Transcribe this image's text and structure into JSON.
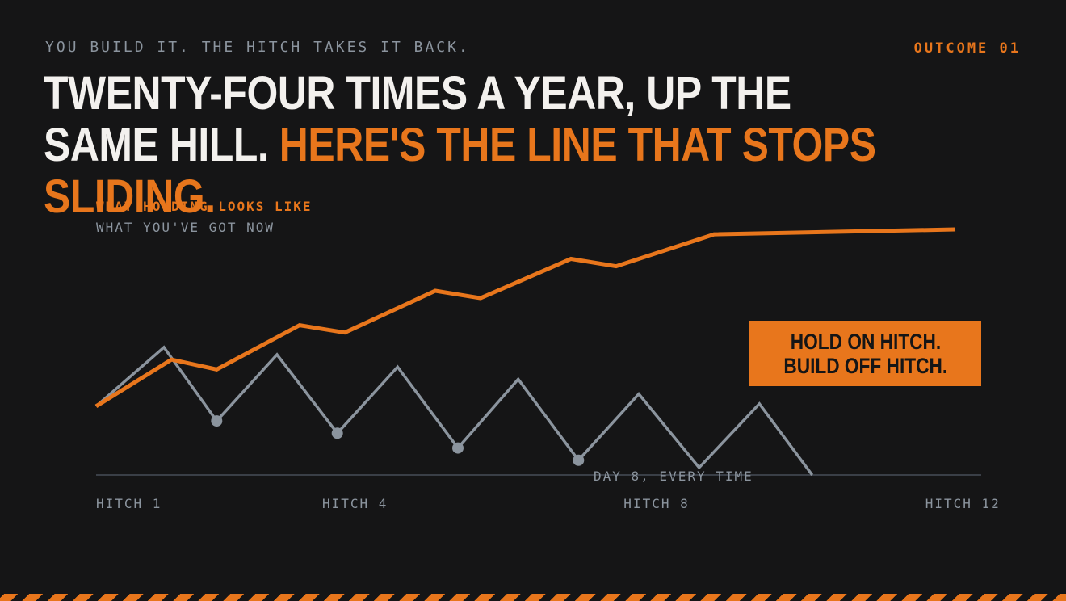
{
  "kicker": "YOU BUILD IT. THE HITCH TAKES IT BACK.",
  "tag": "OUTCOME 01",
  "headline": {
    "part1": "TWENTY-FOUR TIMES A YEAR, UP THE SAME HILL.",
    "part2": "HERE'S THE LINE THAT STOPS SLIDING."
  },
  "callout": {
    "line1": "HOLD ON HITCH.",
    "line2": "BUILD OFF HITCH."
  },
  "colors": {
    "background": "#151516",
    "accent": "#e8761c",
    "muted": "#8b949e",
    "headline": "#f3f1ee"
  },
  "chart_data": {
    "type": "line",
    "legend": [
      "WHAT HOLDING LOOKS LIKE",
      "WHAT YOU'VE GOT NOW"
    ],
    "x_ticks": [
      {
        "x": 1,
        "label": "HITCH 1"
      },
      {
        "x": 4,
        "label": "HITCH 4"
      },
      {
        "x": 8,
        "label": "HITCH 8"
      },
      {
        "x": 12,
        "label": "HITCH 12"
      }
    ],
    "xlim": [
      1,
      12.4
    ],
    "ylim": [
      0,
      100
    ],
    "series": [
      {
        "name": "WHAT HOLDING LOOKS LIKE",
        "color": "#e8761c",
        "x": [
          1,
          2,
          2.6,
          3.7,
          4.3,
          5.5,
          6.1,
          7.3,
          7.9,
          9.2,
          12.4
        ],
        "y": [
          28,
          47,
          43,
          61,
          58,
          75,
          72,
          88,
          85,
          98,
          100
        ]
      },
      {
        "name": "WHAT YOU'VE GOT NOW",
        "color": "#8b949e",
        "x": [
          1,
          1.9,
          2.6,
          3.4,
          4.2,
          5,
          5.8,
          6.6,
          7.4,
          8.2,
          9,
          9.8,
          10.5
        ],
        "y": [
          28,
          52,
          22,
          49,
          17,
          44,
          11,
          39,
          6,
          33,
          3,
          29,
          0
        ]
      }
    ],
    "markers": [
      {
        "x": 2.6,
        "y": 22
      },
      {
        "x": 4.2,
        "y": 17
      },
      {
        "x": 5.8,
        "y": 11
      },
      {
        "x": 7.4,
        "y": 6
      }
    ],
    "annotation": {
      "x": 7.6,
      "text": "DAY 8, EVERY TIME"
    }
  }
}
